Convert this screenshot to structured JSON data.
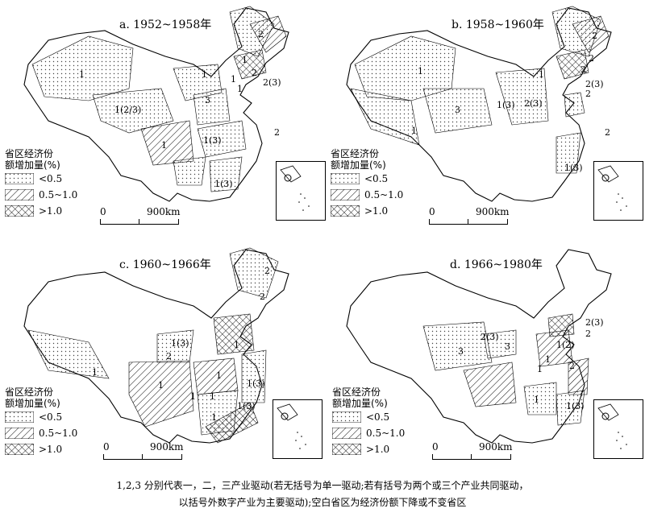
{
  "panels": [
    {
      "title": "a. 1952~1958年",
      "labels": [
        "2",
        "1",
        "1",
        "1",
        "2",
        "3",
        "1(2/3)",
        "2(3)",
        "1",
        "1",
        "2",
        "1(3)",
        "1",
        "1(3)"
      ]
    },
    {
      "title": "b. 1958~1960年",
      "labels": [
        "2",
        "2",
        "1",
        "1",
        "2",
        "2(3)",
        "2",
        "1(3)",
        "2(3)",
        "3",
        "1",
        "2",
        "1(3)"
      ]
    },
    {
      "title": "c. 1960~1966年",
      "labels": [
        "2",
        "2",
        "1(3)",
        "2",
        "1",
        "1",
        "1",
        "1(3)",
        "1",
        "1",
        "1",
        "1(3)",
        "1"
      ]
    },
    {
      "title": "d. 1966~1980年",
      "labels": [
        "2(3)",
        "2",
        "2(3)",
        "3",
        "1(2)",
        "1",
        "3",
        "1",
        "2",
        "1",
        "1(3)"
      ]
    }
  ],
  "legend": {
    "title_line1": "省区经济份",
    "title_line2": "额增加量(%)",
    "items": [
      {
        "label": "<0.5",
        "pattern": "dots"
      },
      {
        "label": "0.5~1.0",
        "pattern": "hatch"
      },
      {
        "label": ">1.0",
        "pattern": "crosshatch"
      }
    ]
  },
  "scale": {
    "start": "0",
    "end": "900km"
  },
  "caption": {
    "line1": "1,2,3 分别代表一，二，三产业驱动(若无括号为单一驱动;若有括号为两个或三个产业共同驱动，",
    "line2": "以括号外数字产业为主要驱动);空白省区为经济份额下降或不变省区"
  }
}
